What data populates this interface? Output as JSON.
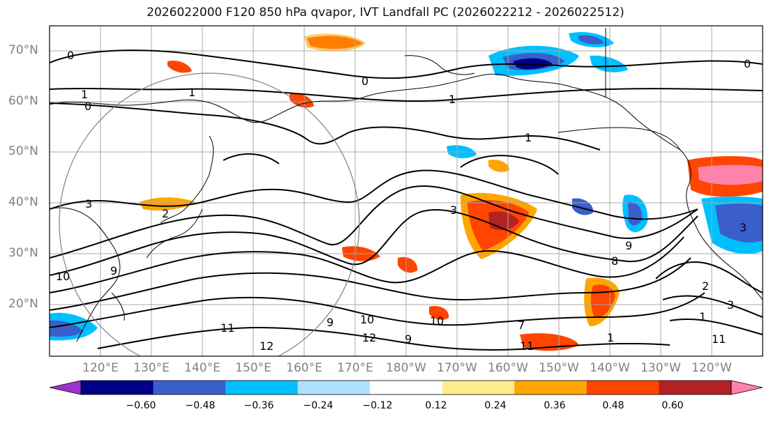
{
  "title": "2026022000 F120 850 hPa qvapor, IVT Landfall PC (2026022212 - 2026022512)",
  "lat_labels": [
    "70°N",
    "60°N",
    "50°N",
    "40°N",
    "30°N",
    "20°N"
  ],
  "lon_labels": [
    "120°E",
    "130°E",
    "140°E",
    "150°E",
    "160°E",
    "170°E",
    "180°W",
    "170°W",
    "160°W",
    "150°W",
    "140°W",
    "130°W",
    "120°W"
  ],
  "colorbar": {
    "colors": [
      "#9a32cd",
      "#00008b",
      "#3a5fcd",
      "#00bfff",
      "#b0e2ff",
      "#ffffff",
      "#ffec8b",
      "#ffa500",
      "#ff4500",
      "#b22222",
      "#ff82ab"
    ],
    "tick_labels": [
      "−0.60",
      "−0.48",
      "−0.36",
      "−0.24",
      "−0.12",
      "0.12",
      "0.24",
      "0.36",
      "0.48",
      "0.60"
    ]
  },
  "contour_labels": [
    "0",
    "0",
    "0",
    "0",
    "1",
    "1",
    "1",
    "1",
    "1",
    "2",
    "3",
    "3",
    "3",
    "9",
    "9",
    "10",
    "10",
    "11",
    "11",
    "12",
    "12",
    "7",
    "8",
    "9",
    "2",
    "3",
    "1",
    "11",
    "9",
    "10"
  ]
}
